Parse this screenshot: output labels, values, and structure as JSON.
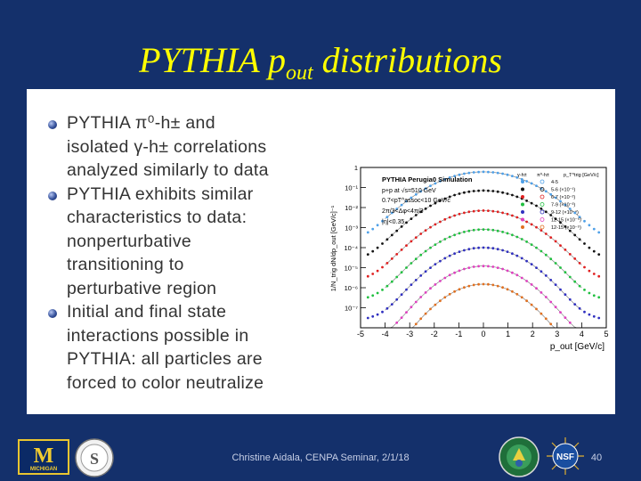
{
  "slide": {
    "title_main": "PYTHIA p",
    "title_sub": "out",
    "title_rest": " distributions",
    "footer": "Christine Aidala, CENPA Seminar, 2/1/18",
    "page_number": "40"
  },
  "bullets": [
    {
      "line1": "PYTHIA π⁰-h± and",
      "line2": "isolated γ-h± correlations",
      "line3": "analyzed similarly to data"
    },
    {
      "line1": "PYTHIA exhibits similar",
      "line2": "characteristics to data:",
      "line3": "nonperturbative",
      "line4": "transitioning to",
      "line5": "perturbative region"
    },
    {
      "line1": "Initial and final state",
      "line2": "interactions possible in",
      "line3": "PYTHIA: all particles are",
      "line4": "forced to color neutralize"
    }
  ],
  "logos": {
    "michigan": "M",
    "michigan_sub": "MICHIGAN",
    "seal": "S",
    "nsf": "NSF"
  },
  "chart_data": {
    "type": "scatter",
    "title": "PYTHIA Perugia0 Simulation",
    "annotations": [
      "p+p at √s=510 GeV",
      "0.7<pT^assoc<10 GeV/c",
      "2π/3<Δφ<4π/3",
      "|η|<0.35"
    ],
    "xlabel": "p_out [GeV/c]",
    "ylabel": "1/N_trig dN/dp_out [GeV/c]⁻¹",
    "xlim": [
      -5,
      5
    ],
    "ylim_log10": [
      -8,
      0
    ],
    "xticks": [
      "-5",
      "-4",
      "-3",
      "-2",
      "-1",
      "0",
      "1",
      "2",
      "3",
      "4",
      "5"
    ],
    "yticks": [
      "1",
      "10⁻¹",
      "10⁻²",
      "10⁻³",
      "10⁻⁴",
      "10⁻⁵",
      "10⁻⁶",
      "10⁻⁷"
    ],
    "legend_header": "p_T^trig [GeV/c]",
    "legend_columns": [
      "γ-h±",
      "π⁰-h±"
    ],
    "log_y": true,
    "series": [
      {
        "name": "4-5",
        "color": "#4ea0e8",
        "peak": 0.6,
        "width": 1.2,
        "tail": 0.004
      },
      {
        "name": "5-6 (×10⁻¹)",
        "color": "#111111",
        "peak": 0.07,
        "width": 1.15,
        "tail": 0.0004
      },
      {
        "name": "6-7 (×10⁻²)",
        "color": "#e02020",
        "peak": 0.007,
        "width": 1.1,
        "tail": 4e-05
      },
      {
        "name": "7-9 (×10⁻³)",
        "color": "#20c040",
        "peak": 0.0008,
        "width": 1.05,
        "tail": 4e-06
      },
      {
        "name": "9-12 (×10⁻⁴)",
        "color": "#3030c0",
        "peak": 0.0001,
        "width": 1.0,
        "tail": 4e-07
      },
      {
        "name": "12-15 (×10⁻⁵)",
        "color": "#e040c0",
        "peak": 1.2e-05,
        "width": 0.95,
        "tail": 4e-08
      },
      {
        "name": "12-15 (×10⁻⁵)",
        "color": "#e07020",
        "peak": 1.5e-06,
        "width": 0.9,
        "tail": 4e-09
      }
    ]
  }
}
